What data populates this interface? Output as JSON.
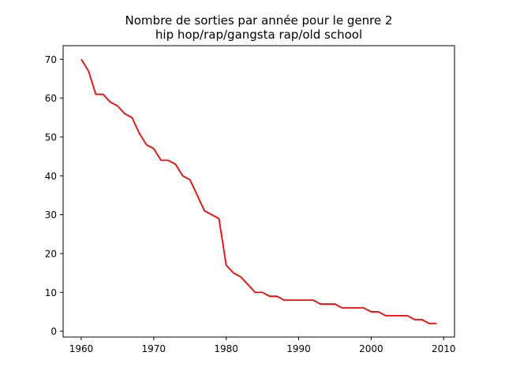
{
  "chart_data": {
    "type": "line",
    "title_line1": "Nombre de sorties par année pour le genre 2",
    "title_line2": "hip hop/rap/gangsta rap/old school",
    "xlabel": "",
    "ylabel": "",
    "xlim": [
      1957.5,
      2011.5
    ],
    "ylim": [
      -1.5,
      73.5
    ],
    "xticks": [
      1960,
      1970,
      1980,
      1990,
      2000,
      2010
    ],
    "yticks": [
      0,
      10,
      20,
      30,
      40,
      50,
      60,
      70
    ],
    "grid": false,
    "series": [
      {
        "color": "#ff0000",
        "x": [
          1960,
          1961,
          1962,
          1963,
          1964,
          1965,
          1966,
          1967,
          1968,
          1969,
          1970,
          1971,
          1972,
          1973,
          1974,
          1975,
          1976,
          1977,
          1978,
          1979,
          1980,
          1981,
          1982,
          1983,
          1984,
          1985,
          1986,
          1987,
          1988,
          1989,
          1990,
          1991,
          1992,
          1993,
          1994,
          1995,
          1996,
          1997,
          1998,
          1999,
          2000,
          2001,
          2002,
          2003,
          2004,
          2005,
          2006,
          2007,
          2008,
          2009
        ],
        "y": [
          70,
          67,
          61,
          61,
          59,
          58,
          56,
          55,
          51,
          48,
          47,
          44,
          44,
          43,
          40,
          39,
          35,
          31,
          30,
          29,
          17,
          15,
          14,
          12,
          10,
          10,
          9,
          9,
          8,
          8,
          8,
          8,
          8,
          7,
          7,
          7,
          6,
          6,
          6,
          6,
          5,
          5,
          4,
          4,
          4,
          4,
          3,
          3,
          2,
          2
        ]
      }
    ]
  }
}
